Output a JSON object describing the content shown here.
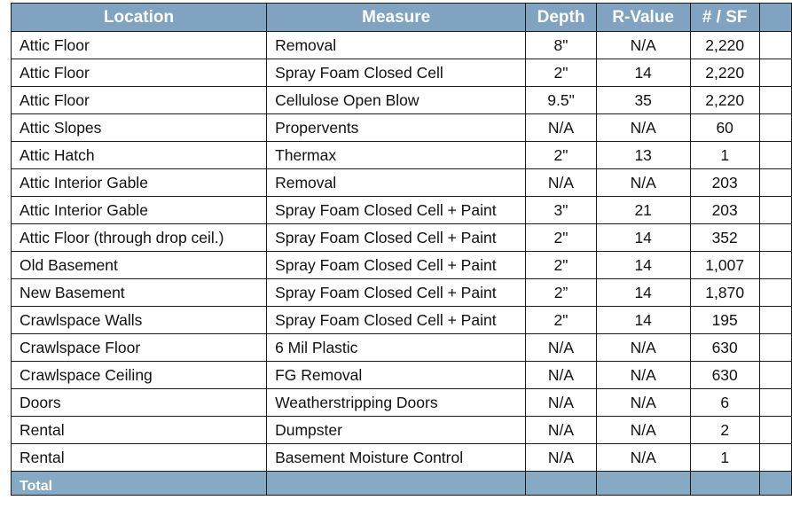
{
  "table": {
    "headers": [
      "Location",
      "Measure",
      "Depth",
      "R-Value",
      "# / SF"
    ],
    "rows": [
      [
        "Attic Floor",
        "Removal",
        "8\"",
        "N/A",
        "2,220"
      ],
      [
        "Attic Floor",
        "Spray Foam Closed Cell",
        "2\"",
        "14",
        "2,220"
      ],
      [
        "Attic Floor",
        "Cellulose Open Blow",
        "9.5\"",
        "35",
        "2,220"
      ],
      [
        "Attic Slopes",
        "Propervents",
        "N/A",
        "N/A",
        "60"
      ],
      [
        "Attic Hatch",
        "Thermax",
        "2\"",
        "13",
        "1"
      ],
      [
        "Attic Interior Gable",
        "Removal",
        "N/A",
        "N/A",
        "203"
      ],
      [
        "Attic Interior Gable",
        "Spray Foam Closed Cell + Paint",
        "3\"",
        "21",
        "203"
      ],
      [
        "Attic Floor (through drop ceil.)",
        "Spray Foam Closed Cell + Paint",
        "2\"",
        "14",
        "352"
      ],
      [
        "Old Basement",
        "Spray Foam Closed Cell + Paint",
        "2\"",
        "14",
        "1,007"
      ],
      [
        "New Basement",
        "Spray Foam Closed Cell + Paint",
        "2”",
        "14",
        "1,870"
      ],
      [
        "Crawlspace Walls",
        "Spray Foam Closed Cell + Paint",
        "2\"",
        "14",
        "195"
      ],
      [
        "Crawlspace Floor",
        "6 Mil Plastic",
        "N/A",
        "N/A",
        "630"
      ],
      [
        "Crawlspace Ceiling",
        "FG Removal",
        "N/A",
        "N/A",
        "630"
      ],
      [
        "Doors",
        "Weatherstripping Doors",
        "N/A",
        "N/A",
        "6"
      ],
      [
        "Rental",
        "Dumpster",
        "N/A",
        "N/A",
        "2"
      ],
      [
        "Rental",
        "Basement Moisture Control",
        "N/A",
        "N/A",
        "1"
      ]
    ],
    "total_label": "Total",
    "header_color": "#7fa3c0"
  }
}
